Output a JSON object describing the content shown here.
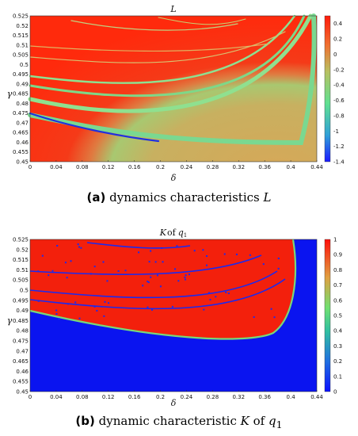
{
  "figure": {
    "panel_a": {
      "label": "(a)",
      "caption_text": "dynamics characteristics",
      "caption_symbol": "L"
    },
    "panel_b": {
      "label": "(b)",
      "caption_text": "dynamic characteristic",
      "caption_symbol": "K",
      "caption_of": "of",
      "caption_var": "q",
      "caption_sub": "1"
    }
  },
  "chart_data": [
    {
      "type": "heatmap",
      "title": "L",
      "xlabel": "δ",
      "ylabel": "γ",
      "xlim": [
        0,
        0.44
      ],
      "ylim": [
        0.45,
        0.525
      ],
      "x_ticks": [
        "0",
        "0.04",
        "0.08",
        "0.12",
        "0.16",
        "0.2",
        "0.24",
        "0.28",
        "0.32",
        "0.36",
        "0.4",
        "0.44"
      ],
      "y_ticks": [
        "0.45",
        "0.455",
        "0.46",
        "0.465",
        "0.47",
        "0.475",
        "0.48",
        "0.485",
        "0.49",
        "0.495",
        "0.5",
        "0.505",
        "0.51",
        "0.515",
        "0.52",
        "0.525"
      ],
      "colorbar": {
        "range": [
          -1.4,
          0.5
        ],
        "ticks": [
          "0.4",
          "0.2",
          "0",
          "-0.2",
          "-0.4",
          "-0.6",
          "-0.8",
          "-1",
          "-1.2",
          "-1.4"
        ],
        "colormap": [
          "#1a1aff",
          "#3fd0a0",
          "#7fe07f",
          "#c9b45a",
          "#ff2a0a"
        ]
      }
    },
    {
      "type": "heatmap",
      "title": "K of q1",
      "title_main": "K",
      "title_of": "of",
      "title_var": "q",
      "title_sub": "1",
      "xlabel": "δ",
      "ylabel": "γ",
      "xlim": [
        0,
        0.44
      ],
      "ylim": [
        0.45,
        0.525
      ],
      "x_ticks": [
        "0",
        "0.04",
        "0.08",
        "0.12",
        "0.16",
        "0.2",
        "0.24",
        "0.28",
        "0.32",
        "0.36",
        "0.4",
        "0.44"
      ],
      "y_ticks": [
        "0.45",
        "0.455",
        "0.46",
        "0.465",
        "0.47",
        "0.475",
        "0.48",
        "0.485",
        "0.49",
        "0.495",
        "0.5",
        "0.505",
        "0.51",
        "0.515",
        "0.52",
        "0.525"
      ],
      "colorbar": {
        "range": [
          0,
          1
        ],
        "ticks": [
          "1",
          "0.9",
          "0.8",
          "0.7",
          "0.6",
          "0.5",
          "0.4",
          "0.3",
          "0.2",
          "0.1",
          "0"
        ],
        "colormap": [
          "#0a1aff",
          "#20b0c0",
          "#7fe07f",
          "#e0a040",
          "#ff1a0a"
        ]
      }
    }
  ]
}
